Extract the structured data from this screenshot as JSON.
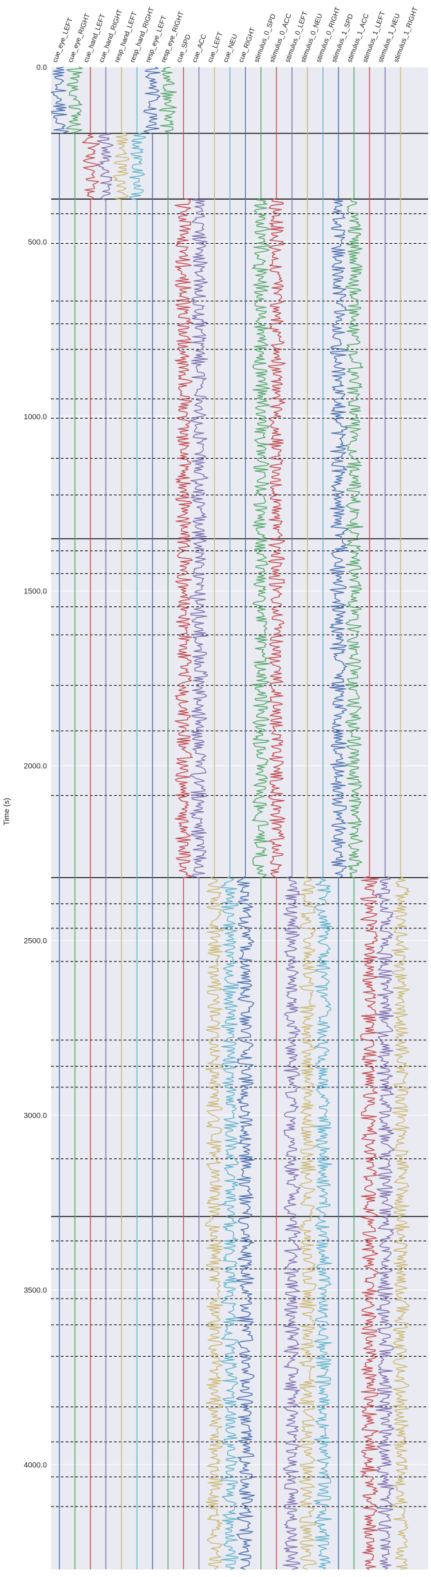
{
  "chart_data": {
    "type": "line",
    "title": "",
    "xlabel": "",
    "ylabel": "Time (s)",
    "ylim": [
      0,
      4300
    ],
    "y_inverted": true,
    "yticks": [
      0,
      500,
      1000,
      1500,
      2000,
      2500,
      3000,
      3500,
      4000
    ],
    "ytick_labels": [
      "0.0",
      "500.0",
      "1000.0",
      "1500.0",
      "2000.0",
      "2500.0",
      "3000.0",
      "3500.0",
      "4000.0"
    ],
    "grid": true,
    "background": "#eaeaf2",
    "channels": [
      {
        "name": "cue_eye_LEFT",
        "color": "#4c72b0"
      },
      {
        "name": "cue_eye_RIGHT",
        "color": "#55a868"
      },
      {
        "name": "cue_hand_LEFT",
        "color": "#c44e52"
      },
      {
        "name": "cue_hand_RIGHT",
        "color": "#8172b2"
      },
      {
        "name": "resp_hand_LEFT",
        "color": "#ccb974"
      },
      {
        "name": "resp_hand_RIGHT",
        "color": "#64b5cd"
      },
      {
        "name": "resp_eye_LEFT",
        "color": "#4c72b0"
      },
      {
        "name": "resp_eye_RIGHT",
        "color": "#55a868"
      },
      {
        "name": "cue_SPD",
        "color": "#c44e52"
      },
      {
        "name": "cue_ACC",
        "color": "#8172b2"
      },
      {
        "name": "cue_LEFT",
        "color": "#ccb974"
      },
      {
        "name": "cue_NEU",
        "color": "#64b5cd"
      },
      {
        "name": "cue_RIGHT",
        "color": "#4c72b0"
      },
      {
        "name": "stimulus_0_SPD",
        "color": "#55a868"
      },
      {
        "name": "stimulus_0_ACC",
        "color": "#c44e52"
      },
      {
        "name": "stimulus_0_LEFT",
        "color": "#8172b2"
      },
      {
        "name": "stimulus_0_NEU",
        "color": "#ccb974"
      },
      {
        "name": "stimulus_0_RIGHT",
        "color": "#64b5cd"
      },
      {
        "name": "stimulus_1_SPD",
        "color": "#4c72b0"
      },
      {
        "name": "stimulus_1_ACC",
        "color": "#55a868"
      },
      {
        "name": "stimulus_1_LEFT",
        "color": "#c44e52"
      },
      {
        "name": "stimulus_1_NEU",
        "color": "#8172b2"
      },
      {
        "name": "stimulus_1_RIGHT",
        "color": "#ccb974"
      }
    ],
    "run_boundaries": [
      0,
      190,
      378,
      1350,
      2320,
      3290,
      4300
    ],
    "trial_boundaries": [
      420,
      505,
      670,
      735,
      808,
      950,
      1005,
      1120,
      1225,
      1385,
      1450,
      1545,
      1625,
      1770,
      1900,
      2085,
      2395,
      2465,
      2560,
      2785,
      2860,
      2920,
      3125,
      3360,
      3440,
      3525,
      3600,
      3690,
      3835,
      3935,
      4035,
      4120
    ],
    "active_segments": [
      {
        "channels": [
          "cue_eye_LEFT",
          "cue_eye_RIGHT",
          "resp_eye_LEFT",
          "resp_eye_RIGHT"
        ],
        "start": 0,
        "end": 190
      },
      {
        "channels": [
          "cue_hand_LEFT",
          "cue_hand_RIGHT",
          "resp_hand_LEFT",
          "resp_hand_RIGHT"
        ],
        "start": 190,
        "end": 378
      },
      {
        "channels": [
          "cue_SPD",
          "cue_ACC",
          "stimulus_0_SPD",
          "stimulus_0_ACC",
          "stimulus_1_SPD",
          "stimulus_1_ACC"
        ],
        "start": 378,
        "end": 2320
      },
      {
        "channels": [
          "cue_LEFT",
          "cue_NEU",
          "cue_RIGHT",
          "stimulus_0_LEFT",
          "stimulus_0_NEU",
          "stimulus_0_RIGHT",
          "stimulus_1_LEFT",
          "stimulus_1_NEU",
          "stimulus_1_RIGHT"
        ],
        "start": 2320,
        "end": 4300
      }
    ]
  }
}
